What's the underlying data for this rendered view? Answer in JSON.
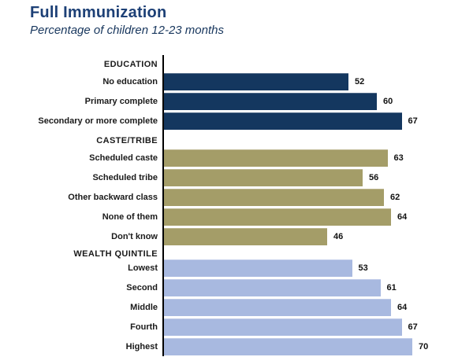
{
  "header": {
    "title": "Full Immunization",
    "subtitle": "Percentage of children 12-23 months"
  },
  "colors": {
    "title_text": "#1d4076",
    "subtitle_text": "#17365d",
    "axis": "#000000",
    "label_text": "#1a1a1a",
    "value_text": "#111111",
    "education_bar": "#14375f",
    "caste_bar": "#a49d68",
    "wealth_bar": "#a8b9e0"
  },
  "chart_data": {
    "type": "bar",
    "orientation": "horizontal",
    "title": "Full Immunization",
    "subtitle": "Percentage of children 12-23 months",
    "xlabel": "",
    "ylabel": "",
    "xlim": [
      0,
      80
    ],
    "grid": false,
    "legend": "none",
    "value_labels": "end-of-bar",
    "groups": [
      {
        "header": "EDUCATION",
        "color": "#14375f",
        "categories": [
          "No education",
          "Primary complete",
          "Secondary or more complete"
        ],
        "values": [
          52,
          60,
          67
        ],
        "items": [
          {
            "label": "No education",
            "value": 52
          },
          {
            "label": "Primary complete",
            "value": 60
          },
          {
            "label": "Secondary or more complete",
            "value": 67
          }
        ]
      },
      {
        "header": "CASTE/TRIBE",
        "color": "#a49d68",
        "categories": [
          "Scheduled caste",
          "Scheduled tribe",
          "Other backward class",
          "None of them",
          "Don't know"
        ],
        "values": [
          63,
          56,
          62,
          64,
          46
        ],
        "items": [
          {
            "label": "Scheduled caste",
            "value": 63
          },
          {
            "label": "Scheduled tribe",
            "value": 56
          },
          {
            "label": "Other backward class",
            "value": 62
          },
          {
            "label": "None of them",
            "value": 64
          },
          {
            "label": "Don't know",
            "value": 46
          }
        ]
      },
      {
        "header": "WEALTH QUINTILE",
        "color": "#a8b9e0",
        "categories": [
          "Lowest",
          "Second",
          "Middle",
          "Fourth",
          "Highest"
        ],
        "values": [
          53,
          61,
          64,
          67,
          70
        ],
        "items": [
          {
            "label": "Lowest",
            "value": 53
          },
          {
            "label": "Second",
            "value": 61
          },
          {
            "label": "Middle",
            "value": 64
          },
          {
            "label": "Fourth",
            "value": 67
          },
          {
            "label": "Highest",
            "value": 70
          }
        ]
      }
    ]
  }
}
